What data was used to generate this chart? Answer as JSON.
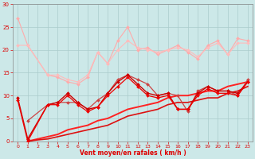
{
  "bg_color": "#cce8e8",
  "grid_color": "#aacccc",
  "text_color": "#dd0000",
  "xlabel": "Vent moyen/en rafales ( km/h )",
  "xlim": [
    -0.5,
    23.5
  ],
  "ylim": [
    0,
    30
  ],
  "yticks": [
    0,
    5,
    10,
    15,
    20,
    25,
    30
  ],
  "xticks": [
    0,
    1,
    2,
    3,
    4,
    5,
    6,
    7,
    8,
    9,
    10,
    11,
    12,
    13,
    14,
    15,
    16,
    17,
    18,
    19,
    20,
    21,
    22,
    23
  ],
  "lines": [
    {
      "x": [
        0,
        1,
        3,
        4,
        5,
        6,
        7,
        8,
        9,
        10,
        11,
        12,
        13,
        14,
        15,
        16,
        17,
        18,
        19,
        20,
        21,
        22,
        23
      ],
      "y": [
        27,
        21,
        14.5,
        14,
        13,
        12.5,
        14,
        19.5,
        17,
        22,
        25,
        20,
        20.5,
        19,
        20,
        21,
        19.5,
        18,
        21,
        22,
        19,
        22.5,
        22
      ],
      "color": "#ffaaaa",
      "lw": 0.8,
      "marker": "D",
      "ms": 2.0
    },
    {
      "x": [
        0,
        1,
        3,
        4,
        5,
        6,
        7,
        8,
        9,
        10,
        11,
        12,
        13,
        14,
        15,
        16,
        17,
        18,
        19,
        20,
        21,
        22,
        23
      ],
      "y": [
        21,
        21,
        14.5,
        14.5,
        13.5,
        13,
        14.5,
        19.5,
        17,
        20,
        22,
        20.5,
        20,
        19.5,
        20,
        20.5,
        20,
        18.5,
        20.5,
        21.5,
        19,
        21.5,
        21.5
      ],
      "color": "#ffbbbb",
      "lw": 0.8,
      "marker": "D",
      "ms": 2.0
    },
    {
      "x": [
        1,
        3,
        4,
        5,
        6,
        7,
        8,
        9,
        10,
        11,
        12,
        13,
        14,
        15,
        16,
        17,
        18,
        19,
        20,
        21,
        22,
        23
      ],
      "y": [
        4.5,
        8,
        8.5,
        8.5,
        8.5,
        7,
        9,
        10.5,
        13.5,
        14.5,
        13.5,
        12.5,
        10,
        10.5,
        10,
        6.5,
        11,
        12,
        11,
        11,
        10,
        13.5
      ],
      "color": "#cc4444",
      "lw": 0.9,
      "marker": "D",
      "ms": 2.0
    },
    {
      "x": [
        0,
        1,
        3,
        4,
        5,
        6,
        7,
        8,
        9,
        10,
        11,
        12,
        13,
        14,
        15,
        16,
        17,
        18,
        19,
        20,
        21,
        22,
        23
      ],
      "y": [
        9.5,
        0.5,
        8,
        8.5,
        10.5,
        8.5,
        7,
        7.5,
        10.5,
        13,
        14.5,
        12.5,
        10.5,
        10,
        10.5,
        7,
        7,
        10.5,
        12,
        11,
        11,
        10.5,
        13
      ],
      "color": "#cc0000",
      "lw": 1.0,
      "marker": "D",
      "ms": 2.0
    },
    {
      "x": [
        0,
        1,
        3,
        4,
        5,
        6,
        7,
        8,
        9,
        10,
        11,
        12,
        13,
        14,
        15,
        16,
        17,
        18,
        19,
        20,
        21,
        22,
        23
      ],
      "y": [
        9,
        0,
        8,
        8,
        10,
        8,
        6.5,
        7.5,
        10,
        12,
        14,
        12,
        10,
        9.5,
        10,
        7,
        7,
        10,
        11.5,
        10.5,
        10.5,
        10,
        13
      ],
      "color": "#ee0000",
      "lw": 0.9,
      "marker": "D",
      "ms": 2.0
    },
    {
      "x": [
        1,
        2,
        3,
        4,
        5,
        6,
        7,
        8,
        9,
        10,
        11,
        12,
        13,
        14,
        15,
        16,
        17,
        18,
        19,
        20,
        21,
        22,
        23
      ],
      "y": [
        0,
        0.5,
        1,
        1.5,
        2.5,
        3,
        3.5,
        4.5,
        5,
        6,
        7,
        7.5,
        8,
        8.5,
        9.5,
        10,
        10,
        10.5,
        11,
        11,
        12,
        12.5,
        13
      ],
      "color": "#ff2222",
      "lw": 1.4,
      "marker": null,
      "ms": 0
    },
    {
      "x": [
        1,
        2,
        3,
        4,
        5,
        6,
        7,
        8,
        9,
        10,
        11,
        12,
        13,
        14,
        15,
        16,
        17,
        18,
        19,
        20,
        21,
        22,
        23
      ],
      "y": [
        0,
        0.3,
        0.5,
        1,
        1.5,
        2,
        2.5,
        3,
        3.5,
        4.5,
        5.5,
        6,
        6.5,
        7,
        8,
        8.5,
        8.5,
        9,
        9.5,
        9.5,
        10.5,
        11,
        12
      ],
      "color": "#dd1111",
      "lw": 1.2,
      "marker": null,
      "ms": 0
    }
  ]
}
